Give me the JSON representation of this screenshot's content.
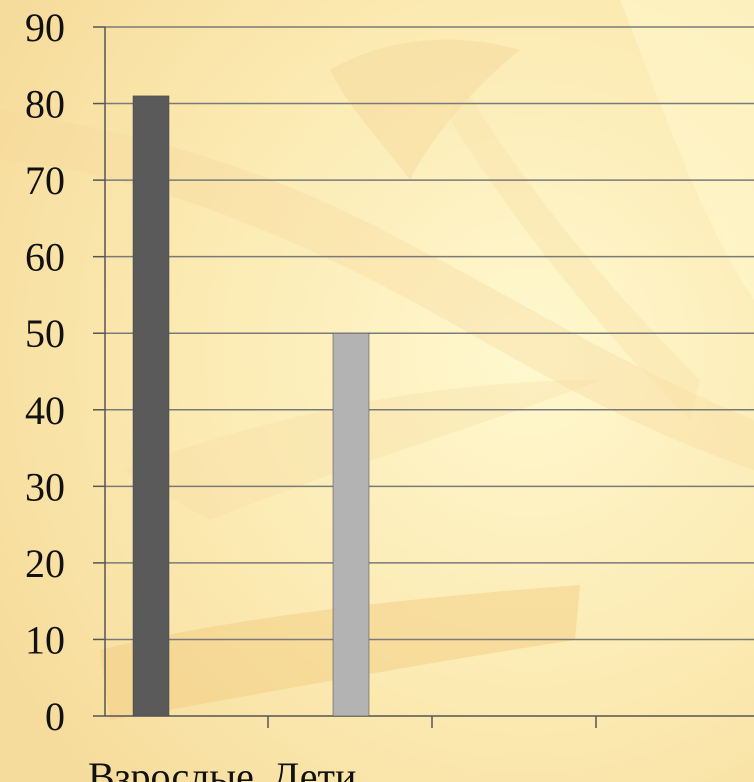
{
  "chart_data": {
    "type": "bar",
    "categories": [
      "Взрослые",
      "Дети"
    ],
    "values": [
      81,
      50
    ],
    "bar_colors": [
      "#5a5a5a",
      "#b3b3b3"
    ],
    "ylim": [
      0,
      90
    ],
    "y_ticks": [
      0,
      10,
      20,
      30,
      40,
      50,
      60,
      70,
      80,
      90
    ],
    "grid": true,
    "title": "",
    "xlabel": "",
    "ylabel": ""
  },
  "colors": {
    "background": "#fdf0b8",
    "grid": "#7a7a7a",
    "axis": "#555555"
  }
}
